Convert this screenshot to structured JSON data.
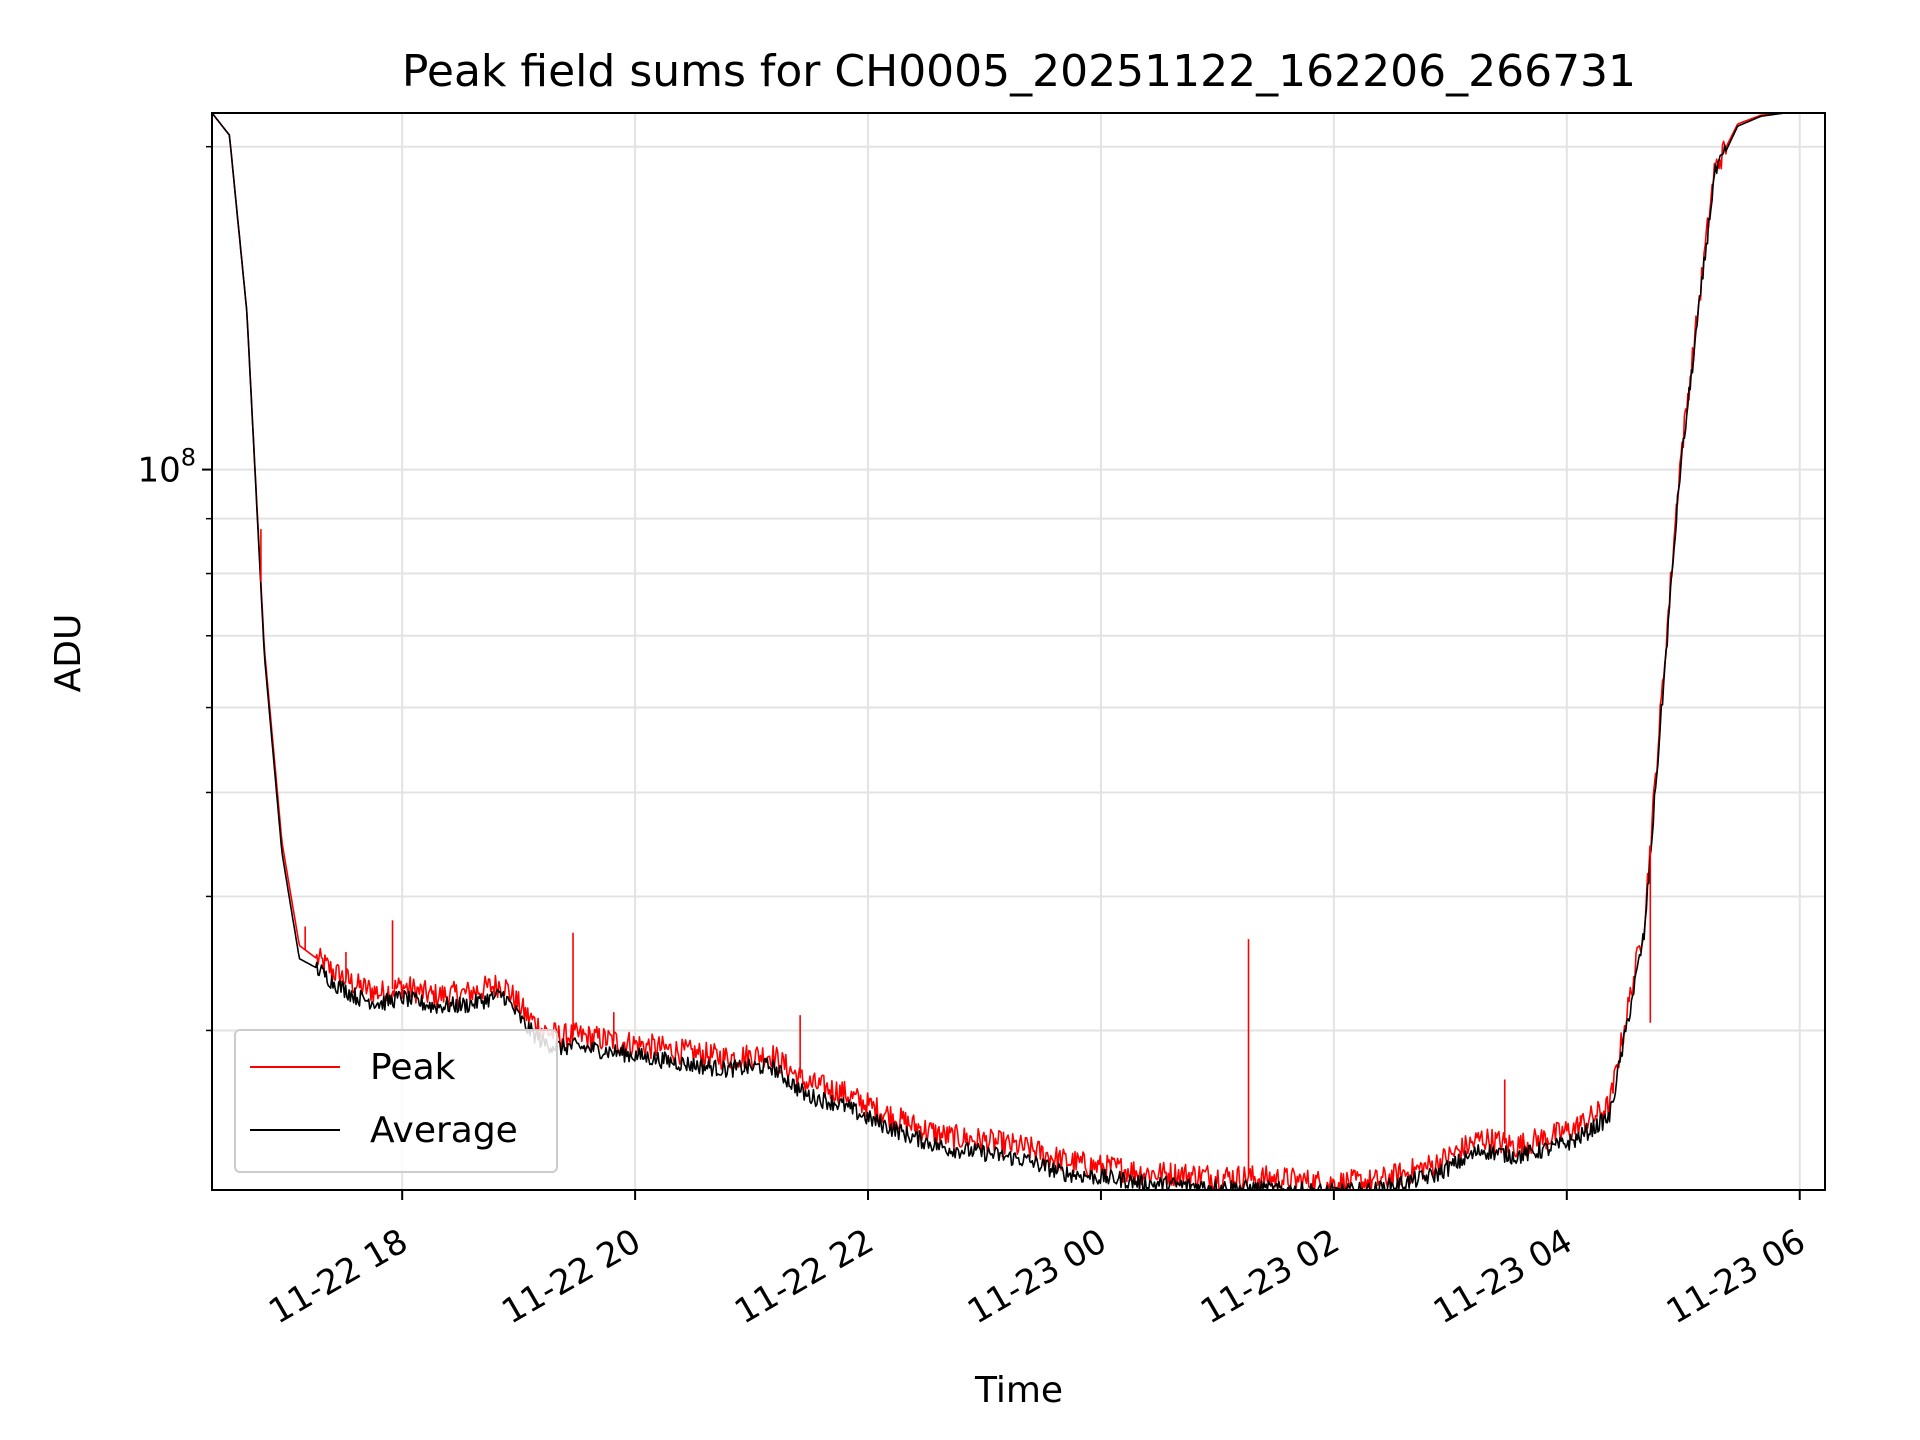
{
  "chart_data": {
    "type": "line",
    "title": "Peak field sums for CH0005_20251122_162206_266731",
    "xlabel": "Time",
    "ylabel": "ADU",
    "yscale": "log",
    "ylim": [
      21300000,
      215000000
    ],
    "ytick_label": {
      "base": "10",
      "exp": "8",
      "value": 100000000
    },
    "x_unit": "hours since 11-22 16:22",
    "xlim": [
      0,
      13.85
    ],
    "xtick_labels": [
      "11-22 18",
      "11-22 20",
      "11-22 22",
      "11-23 00",
      "11-23 02",
      "11-23 04",
      "11-23 06"
    ],
    "xtick_values": [
      1.633,
      3.633,
      5.633,
      7.633,
      9.633,
      11.633,
      13.633
    ],
    "grid": true,
    "legend_position": "lower-left",
    "colors": {
      "peak": "#ff0000",
      "average": "#000000",
      "grid": "#e3e3e3"
    },
    "series": [
      {
        "name": "Peak",
        "x": [
          0,
          0.15,
          0.3,
          0.45,
          0.6,
          0.75,
          0.9,
          1.05,
          1.25,
          1.45,
          1.63,
          1.9,
          2.2,
          2.5,
          2.7,
          2.85,
          3.0,
          3.1,
          3.5,
          4.0,
          4.4,
          4.8,
          5.1,
          5.4,
          5.65,
          6.0,
          6.3,
          6.6,
          7.0,
          7.3,
          7.6,
          7.8,
          8.0,
          8.4,
          8.8,
          9.2,
          9.6,
          10.0,
          10.5,
          10.9,
          11.2,
          11.5,
          11.7,
          12.0,
          12.3,
          12.6,
          12.9,
          13.1,
          13.3,
          13.5,
          13.7,
          13.85
        ],
        "y": [
          215000000,
          205000000,
          140000000,
          68000000,
          45000000,
          36000000,
          35000000,
          34000000,
          33000000,
          32500000,
          33000000,
          32300000,
          32500000,
          33200000,
          31000000,
          30000000,
          29600000,
          29700000,
          29300000,
          28700000,
          28300000,
          28500000,
          26800000,
          26300000,
          25500000,
          24500000,
          23900000,
          23700000,
          23300000,
          22700000,
          22400000,
          22300000,
          22100000,
          22000000,
          21900000,
          21800000,
          21600000,
          21700000,
          22500000,
          23800000,
          23400000,
          23900000,
          24300000,
          25500000,
          38000000,
          100000000,
          190000000,
          210000000,
          214000000,
          215000000,
          215000000,
          215000000
        ]
      },
      {
        "name": "Average",
        "x": [
          0,
          0.15,
          0.3,
          0.45,
          0.6,
          0.75,
          0.9,
          1.05,
          1.25,
          1.45,
          1.63,
          1.9,
          2.2,
          2.5,
          2.7,
          2.85,
          3.0,
          3.1,
          3.5,
          4.0,
          4.4,
          4.8,
          5.1,
          5.4,
          5.65,
          6.0,
          6.3,
          6.6,
          7.0,
          7.3,
          7.6,
          7.8,
          8.0,
          8.4,
          8.8,
          9.2,
          9.6,
          10.0,
          10.5,
          10.9,
          11.2,
          11.5,
          11.7,
          12.0,
          12.3,
          12.6,
          12.9,
          13.1,
          13.3,
          13.5,
          13.7,
          13.85
        ],
        "y": [
          215000000,
          205000000,
          140000000,
          67000000,
          44000000,
          35000000,
          34300000,
          33200000,
          32200000,
          31800000,
          32200000,
          31600000,
          31700000,
          32400000,
          30200000,
          29200000,
          28900000,
          29000000,
          28600000,
          28000000,
          27600000,
          27800000,
          26100000,
          25600000,
          24800000,
          23900000,
          23300000,
          23100000,
          22700000,
          22100000,
          21900000,
          21800000,
          21600000,
          21500000,
          21400000,
          21300000,
          21200000,
          21300000,
          22000000,
          23200000,
          22900000,
          23300000,
          23700000,
          24900000,
          37000000,
          98000000,
          188000000,
          209000000,
          213500000,
          215000000,
          215000000,
          215000000
        ]
      }
    ],
    "peak_spikes": [
      {
        "x": 0.42,
        "y": 88000000
      },
      {
        "x": 0.8,
        "y": 37500000
      },
      {
        "x": 1.15,
        "y": 35500000
      },
      {
        "x": 1.55,
        "y": 38000000
      },
      {
        "x": 3.1,
        "y": 37000000
      },
      {
        "x": 3.45,
        "y": 31200000
      },
      {
        "x": 5.05,
        "y": 31000000
      },
      {
        "x": 8.9,
        "y": 36500000
      },
      {
        "x": 11.1,
        "y": 27000000
      },
      {
        "x": 11.75,
        "y": 25000000
      },
      {
        "x": 12.35,
        "y": 30500000
      }
    ],
    "legend": [
      {
        "label": "Peak",
        "color": "#ff0000"
      },
      {
        "label": "Average",
        "color": "#000000"
      }
    ]
  }
}
